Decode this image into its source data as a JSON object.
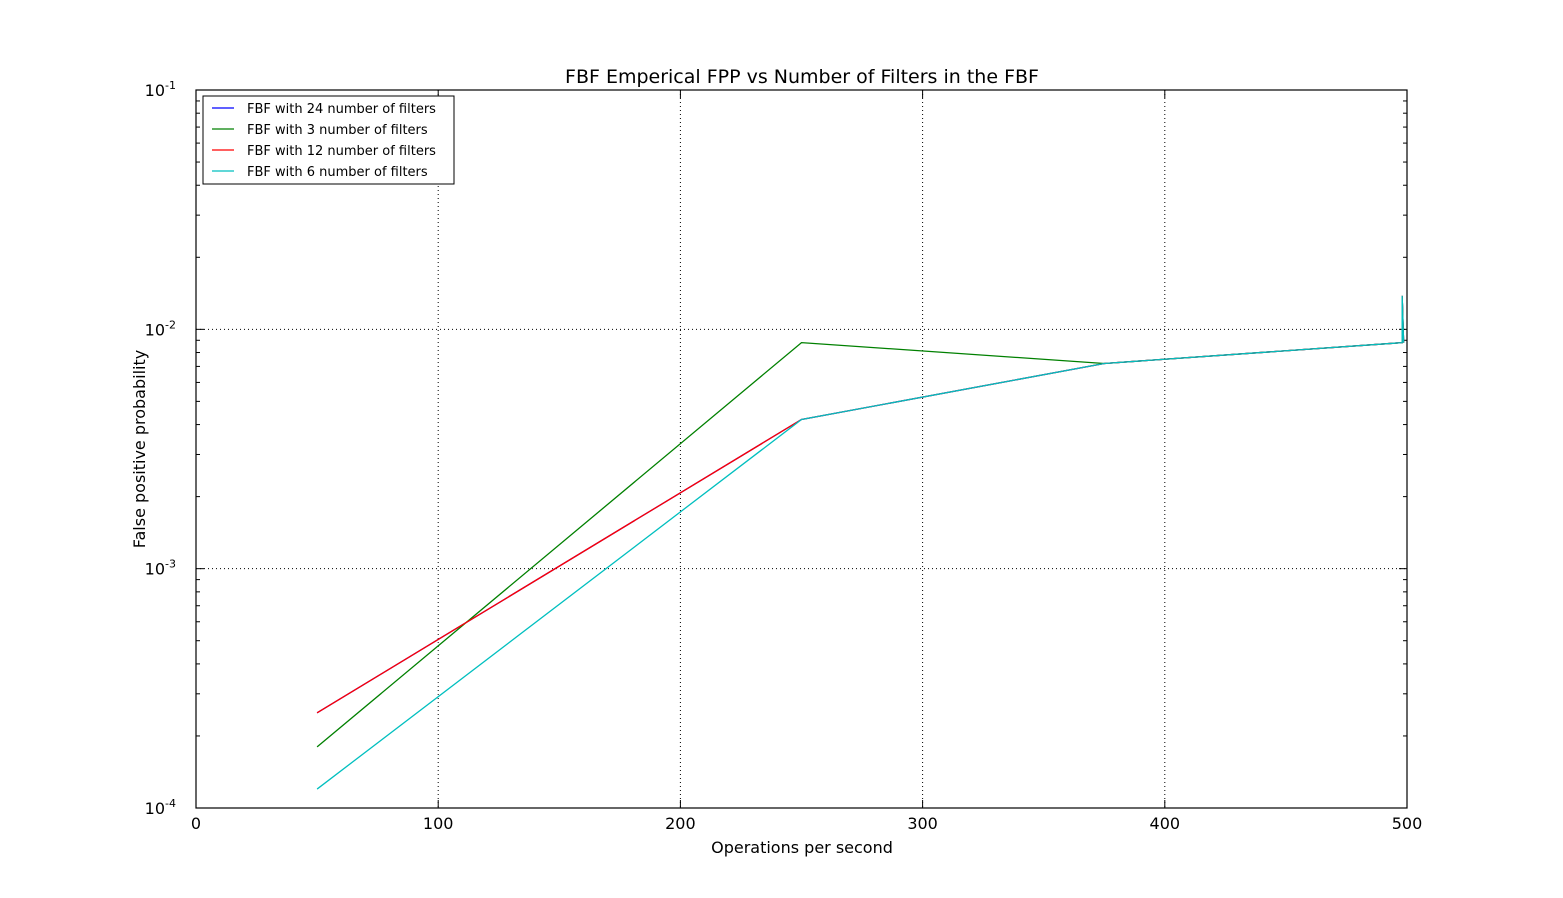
{
  "chart_data": {
    "type": "line",
    "title": "FBF Emperical FPP vs Number of Filters in the FBF",
    "xlabel": "Operations per second",
    "ylabel": "False positive probability",
    "xlim": [
      0,
      500
    ],
    "ylim": [
      0.0001,
      0.1
    ],
    "yscale": "log",
    "grid": true,
    "legend_position": "top-left",
    "x_ticks": [
      0,
      100,
      200,
      300,
      400,
      500
    ],
    "x_tick_labels": [
      "0",
      "100",
      "200",
      "300",
      "400",
      "500"
    ],
    "y_ticks": [
      0.1,
      0.01,
      0.001,
      0.0001
    ],
    "y_tick_bases": [
      "10",
      "10",
      "10",
      "10"
    ],
    "y_tick_exponents": [
      "-1",
      "-2",
      "-3",
      "-4"
    ],
    "series": [
      {
        "name": "FBF with 24 number of filters",
        "color": "#0000ff",
        "x": [
          50,
          250,
          375,
          498,
          498,
          498.6
        ],
        "y": [
          0.00025,
          0.0042,
          0.0072,
          0.0088,
          0.0138,
          0.0088
        ]
      },
      {
        "name": "FBF with 3 number of filters",
        "color": "#008000",
        "x": [
          50,
          250,
          375,
          498,
          498,
          498.6
        ],
        "y": [
          0.00018,
          0.0088,
          0.0072,
          0.0088,
          0.0138,
          0.0088
        ]
      },
      {
        "name": "FBF with 12 number of filters",
        "color": "#ff0000",
        "x": [
          50,
          250,
          375,
          498,
          498,
          498.6
        ],
        "y": [
          0.00025,
          0.0042,
          0.0072,
          0.0088,
          0.0138,
          0.0088
        ]
      },
      {
        "name": "FBF with 6 number of filters",
        "color": "#00bfbf",
        "x": [
          50,
          250,
          375,
          498,
          498,
          498.6
        ],
        "y": [
          0.00012,
          0.0042,
          0.0072,
          0.0088,
          0.0138,
          0.0088
        ]
      }
    ]
  }
}
